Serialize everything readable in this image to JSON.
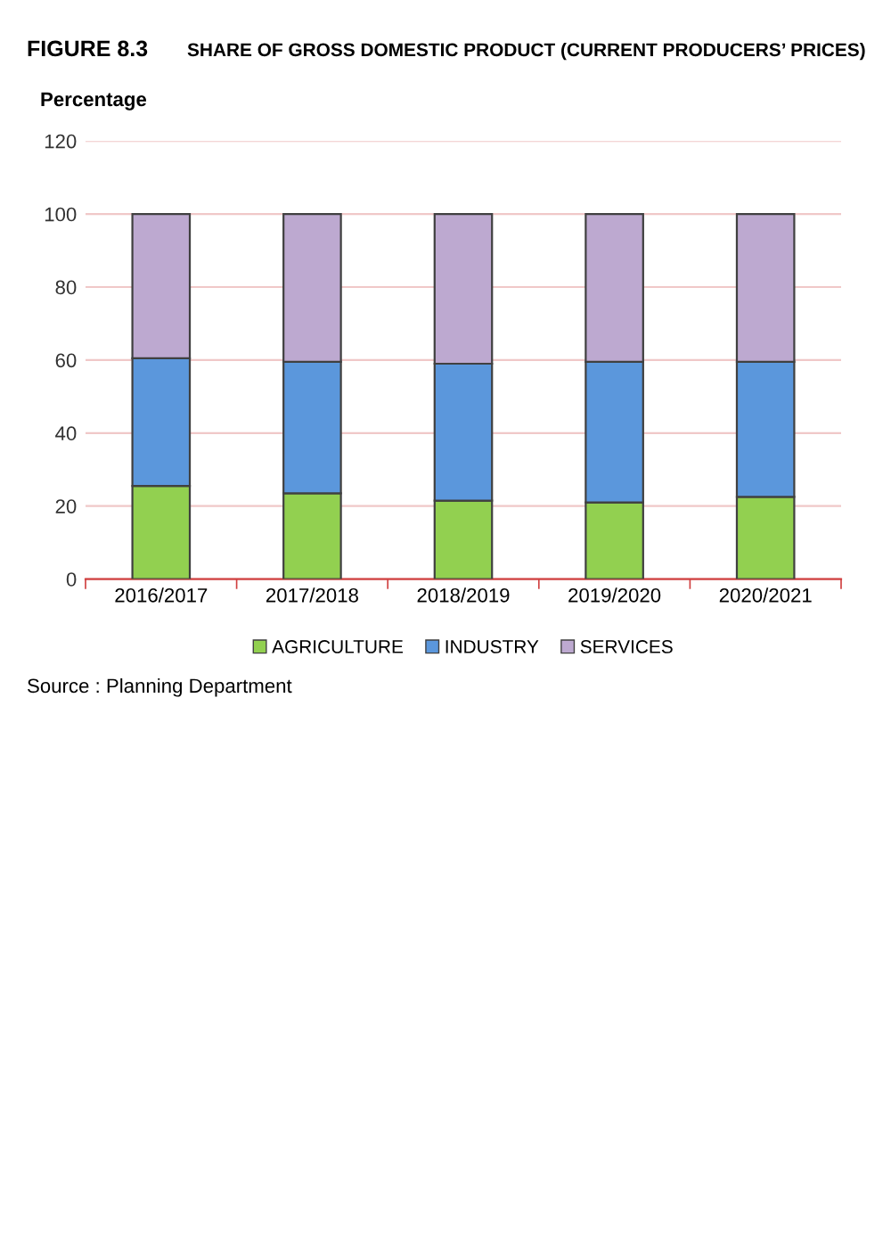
{
  "chart_data": {
    "type": "bar",
    "title": "FIGURE 8.3",
    "subtitle": "SHARE OF GROSS DOMESTIC PRODUCT (CURRENT PRODUCERS’ PRICES)",
    "ylabel": "Percentage",
    "categories": [
      "2016/2017",
      "2017/2018",
      "2018/2019",
      "2019/2020",
      "2020/2021"
    ],
    "stacked": true,
    "series": [
      {
        "name": "AGRICULTURE",
        "color": "#92d050",
        "values": [
          25.5,
          23.5,
          21.5,
          21,
          22.5
        ]
      },
      {
        "name": "INDUSTRY",
        "color": "#5b97dc",
        "values": [
          35,
          36,
          37.5,
          38.5,
          37
        ]
      },
      {
        "name": "SERVICES",
        "color": "#bda9d0",
        "values": [
          39.5,
          40.5,
          41,
          40.5,
          40.5
        ]
      }
    ],
    "ylim": [
      0,
      120
    ],
    "yticks": [
      0,
      20,
      40,
      60,
      80,
      100,
      120
    ],
    "grid": "y",
    "legend": "bottom",
    "annotations": [
      "Source : Planning Department"
    ]
  }
}
